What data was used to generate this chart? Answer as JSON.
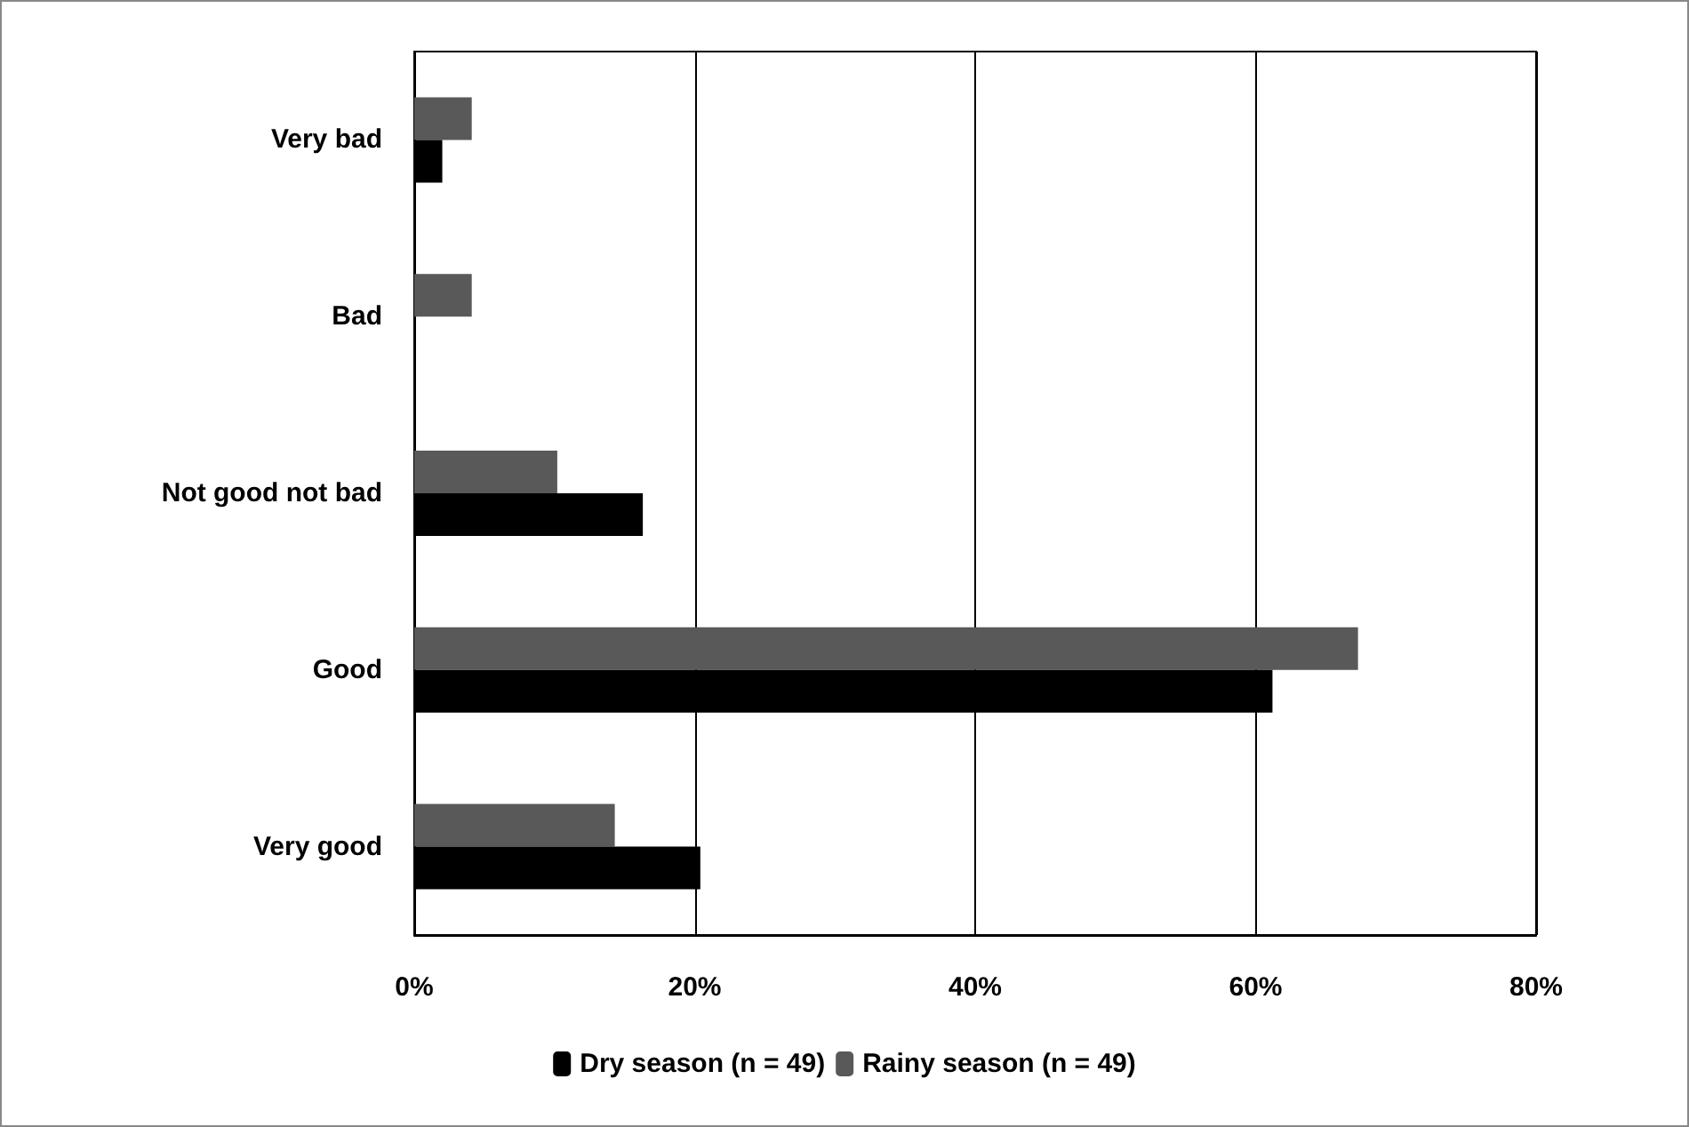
{
  "chart_data": {
    "type": "bar",
    "orientation": "horizontal",
    "categories": [
      "Very bad",
      "Bad",
      "Not good not bad",
      "Good",
      "Very good"
    ],
    "series": [
      {
        "name": "Dry season (n = 49)",
        "color": "#000000",
        "values": [
          2.0,
          0,
          16.3,
          61.2,
          20.4
        ]
      },
      {
        "name": "Rainy season (n = 49)",
        "color": "#595959",
        "values": [
          4.1,
          4.1,
          10.2,
          67.3,
          14.3
        ]
      }
    ],
    "xlim": [
      0,
      80
    ],
    "xticks": [
      {
        "value": 0,
        "label": "0%"
      },
      {
        "value": 20,
        "label": "20%"
      },
      {
        "value": 40,
        "label": "40%"
      },
      {
        "value": 60,
        "label": "60%"
      },
      {
        "value": 80,
        "label": "80%"
      }
    ],
    "grid": "x",
    "legend": "bottom"
  }
}
